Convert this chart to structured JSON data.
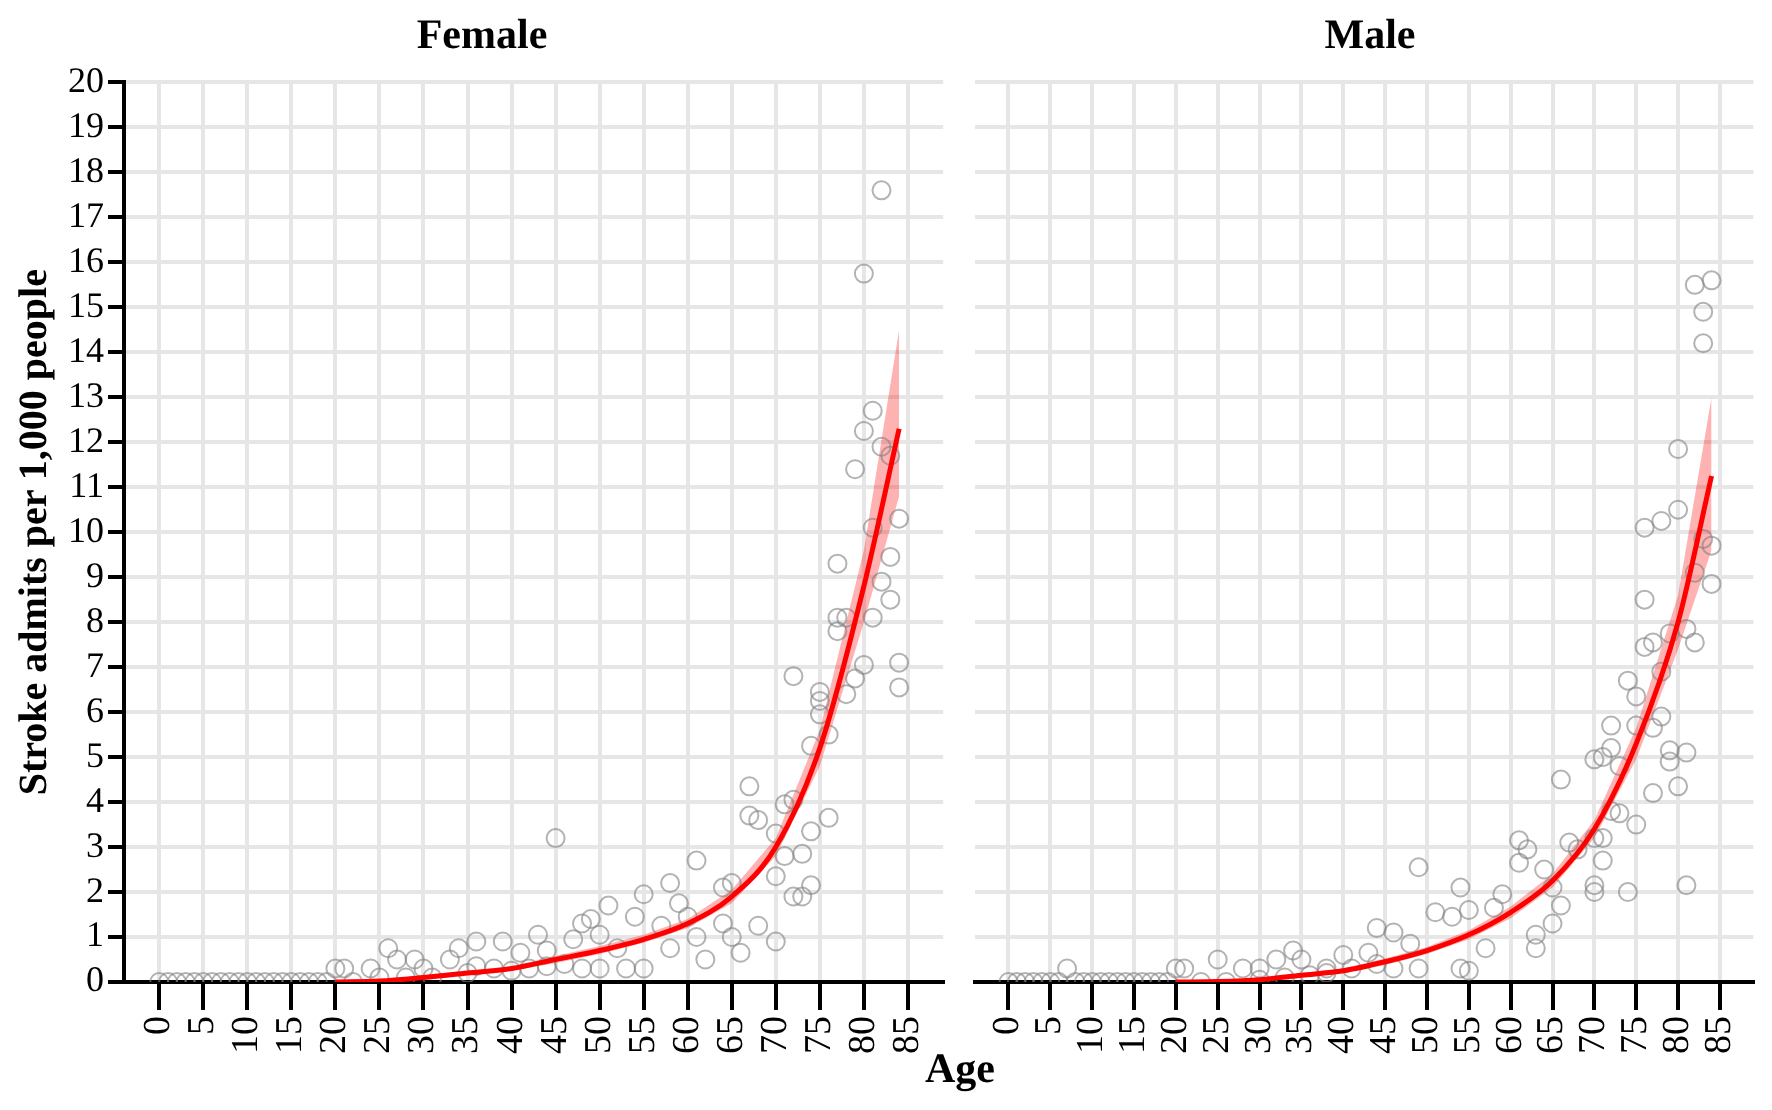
{
  "chart_data": [
    {
      "type": "scatter",
      "title": "Female",
      "ylabel": "Stroke admits per 1,000 people",
      "xlabel": "Age",
      "xlim": [
        -4,
        89
      ],
      "ylim": [
        0,
        20
      ],
      "xticks": [
        0,
        5,
        10,
        15,
        20,
        25,
        30,
        35,
        40,
        45,
        50,
        55,
        60,
        65,
        70,
        75,
        80,
        85
      ],
      "yticks": [
        0,
        1,
        2,
        3,
        4,
        5,
        6,
        7,
        8,
        9,
        10,
        11,
        12,
        13,
        14,
        15,
        16,
        17,
        18,
        19,
        20
      ],
      "grid": true,
      "series": [
        {
          "type": "scatter",
          "marker": "circle",
          "color": "#808080",
          "x": [
            0,
            1,
            2,
            3,
            4,
            5,
            6,
            7,
            8,
            9,
            10,
            11,
            12,
            13,
            14,
            15,
            16,
            17,
            18,
            19,
            22,
            25,
            28,
            31,
            35,
            40,
            42,
            46,
            82,
            80,
            81,
            80,
            82,
            83,
            79,
            81,
            84,
            83,
            77,
            82,
            83,
            77,
            78,
            77,
            81,
            80,
            84,
            84,
            79,
            78,
            72,
            75,
            75,
            75,
            76,
            74,
            67,
            67,
            68,
            71,
            72,
            76,
            74,
            70,
            73,
            71,
            70,
            74,
            72,
            73,
            68,
            70,
            45,
            61,
            58,
            55,
            51,
            65,
            64,
            59,
            60,
            54,
            49,
            48,
            47,
            43,
            39,
            57,
            61,
            62,
            66,
            58,
            65,
            64,
            50,
            52,
            50,
            48,
            53,
            55,
            36,
            34,
            26,
            27,
            29,
            33,
            41,
            44,
            20,
            21,
            24,
            30,
            36,
            38,
            44
          ],
          "values": [
            0,
            0,
            0,
            0,
            0,
            0,
            0,
            0,
            0,
            0,
            0,
            0,
            0,
            0,
            0,
            0,
            0,
            0,
            0,
            0,
            0,
            0.1,
            0.1,
            0.1,
            0.2,
            0.25,
            0.3,
            0.4,
            17.6,
            15.75,
            12.7,
            12.25,
            11.9,
            11.7,
            11.4,
            10.1,
            10.3,
            9.45,
            9.3,
            8.9,
            8.5,
            8.1,
            8.1,
            7.8,
            8.1,
            7.05,
            7.1,
            6.55,
            6.75,
            6.4,
            6.8,
            6.45,
            6.25,
            5.95,
            5.5,
            5.25,
            4.35,
            3.7,
            3.6,
            3.95,
            4.05,
            3.65,
            3.35,
            3.3,
            2.85,
            2.8,
            2.35,
            2.15,
            1.9,
            1.9,
            1.25,
            0.9,
            3.2,
            2.7,
            2.2,
            1.95,
            1.7,
            2.2,
            2.1,
            1.75,
            1.45,
            1.45,
            1.4,
            1.3,
            0.95,
            1.05,
            0.9,
            1.25,
            1.0,
            0.5,
            0.65,
            0.75,
            1.0,
            1.3,
            1.05,
            0.75,
            0.3,
            0.3,
            0.3,
            0.3,
            0.9,
            0.75,
            0.75,
            0.5,
            0.5,
            0.5,
            0.65,
            0.7,
            0.3,
            0.3,
            0.3,
            0.3,
            0.35,
            0.3,
            0.35
          ]
        },
        {
          "type": "line",
          "color": "#ff0000",
          "x": [
            20,
            25,
            30,
            35,
            40,
            45,
            50,
            55,
            60,
            65,
            70,
            75,
            80,
            84
          ],
          "values": [
            0,
            0.02,
            0.1,
            0.2,
            0.3,
            0.5,
            0.7,
            0.95,
            1.3,
            1.9,
            3.0,
            5.2,
            8.8,
            12.3
          ],
          "lower": [
            0,
            0,
            0.05,
            0.15,
            0.25,
            0.42,
            0.62,
            0.87,
            1.2,
            1.75,
            2.8,
            4.8,
            8.0,
            10.8
          ],
          "upper": [
            0.02,
            0.05,
            0.15,
            0.25,
            0.35,
            0.58,
            0.8,
            1.05,
            1.4,
            2.05,
            3.2,
            5.6,
            9.6,
            14.5
          ]
        }
      ]
    },
    {
      "type": "scatter",
      "title": "Male",
      "xlim": [
        -4,
        89
      ],
      "ylim": [
        0,
        20
      ],
      "xticks": [
        0,
        5,
        10,
        15,
        20,
        25,
        30,
        35,
        40,
        45,
        50,
        55,
        60,
        65,
        70,
        75,
        80,
        85
      ],
      "yticks": [
        0,
        1,
        2,
        3,
        4,
        5,
        6,
        7,
        8,
        9,
        10,
        11,
        12,
        13,
        14,
        15,
        16,
        17,
        18,
        19,
        20
      ],
      "grid": true,
      "tick_labels": "x",
      "series": [
        {
          "type": "scatter",
          "marker": "circle",
          "color": "#808080",
          "x": [
            0,
            1,
            2,
            3,
            4,
            5,
            6,
            8,
            9,
            10,
            11,
            12,
            13,
            14,
            15,
            16,
            17,
            18,
            19,
            23,
            26,
            30,
            33,
            36,
            38,
            41,
            44,
            82,
            84,
            83,
            83,
            80,
            80,
            76,
            78,
            83,
            84,
            82,
            84,
            76,
            81,
            79,
            82,
            76,
            77,
            78,
            74,
            75,
            75,
            78,
            77,
            72,
            70,
            71,
            72,
            79,
            81,
            79,
            73,
            80,
            77,
            66,
            72,
            73,
            75,
            70,
            71,
            67,
            68,
            71,
            81,
            74,
            70,
            70,
            61,
            62,
            61,
            49,
            54,
            59,
            58,
            55,
            51,
            53,
            65,
            66,
            64,
            63,
            63,
            65,
            44,
            46,
            48,
            57,
            54,
            55,
            49,
            40,
            43,
            34,
            32,
            35,
            25,
            7,
            20,
            21,
            28,
            30,
            38,
            46
          ],
          "values": [
            0,
            0,
            0,
            0,
            0,
            0,
            0,
            0,
            0,
            0,
            0,
            0,
            0,
            0,
            0,
            0,
            0,
            0,
            0,
            0,
            0,
            0.05,
            0.1,
            0.15,
            0.2,
            0.3,
            0.4,
            15.5,
            15.6,
            14.9,
            14.2,
            11.85,
            10.5,
            10.1,
            10.25,
            9.85,
            9.7,
            9.1,
            8.85,
            8.5,
            7.85,
            7.75,
            7.55,
            7.45,
            7.55,
            6.9,
            6.7,
            6.35,
            5.7,
            5.9,
            5.65,
            5.7,
            4.95,
            5.0,
            5.2,
            5.15,
            5.1,
            4.9,
            4.8,
            4.35,
            4.2,
            4.5,
            3.8,
            3.75,
            3.5,
            3.2,
            3.2,
            3.1,
            2.95,
            2.7,
            2.15,
            2.0,
            2.15,
            2.0,
            3.15,
            2.95,
            2.65,
            2.55,
            2.1,
            1.95,
            1.65,
            1.6,
            1.55,
            1.45,
            2.1,
            1.7,
            2.5,
            1.05,
            0.75,
            1.3,
            1.2,
            1.1,
            0.85,
            0.75,
            0.3,
            0.25,
            0.3,
            0.6,
            0.65,
            0.7,
            0.5,
            0.5,
            0.5,
            0.3,
            0.3,
            0.3,
            0.3,
            0.3,
            0.3,
            0.3
          ]
        },
        {
          "type": "line",
          "color": "#ff0000",
          "x": [
            20,
            25,
            30,
            35,
            40,
            45,
            50,
            55,
            60,
            65,
            70,
            75,
            80,
            84
          ],
          "values": [
            0,
            0.01,
            0.05,
            0.15,
            0.25,
            0.45,
            0.7,
            1.05,
            1.55,
            2.25,
            3.4,
            5.3,
            8.0,
            11.25
          ],
          "lower": [
            0,
            0,
            0.02,
            0.1,
            0.2,
            0.38,
            0.62,
            0.95,
            1.42,
            2.1,
            3.2,
            4.95,
            7.4,
            9.6
          ],
          "upper": [
            0.02,
            0.03,
            0.08,
            0.2,
            0.3,
            0.52,
            0.78,
            1.15,
            1.68,
            2.4,
            3.6,
            5.65,
            8.6,
            13.0
          ]
        }
      ]
    }
  ]
}
